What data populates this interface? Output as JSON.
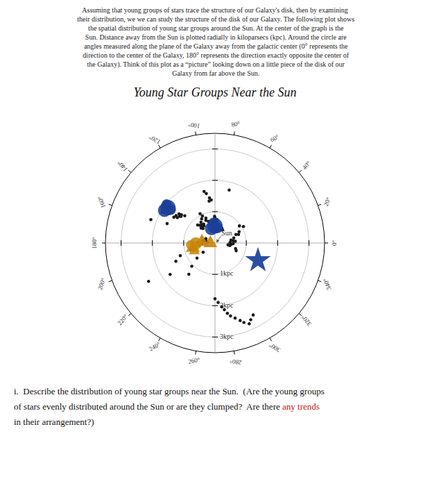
{
  "chart_data": {
    "type": "polar",
    "title": "Young Star Groups Near the Sun",
    "subtitle": [
      "    Assuming that young groups of stars trace the structure of our Galaxy's disk, then by examining",
      " their distribution, we we can study the structure of the disk of our Galaxy. The following plot shows",
      " the spatial distribution of young star groups around the Sun. At the center of the graph is the",
      " Sun. Distance away from the Sun is plotted radially in kiloparsecs (kpc). Around the circle are",
      " angles measured along the plane of the Galaxy away from the galactic center (0° represents the",
      " direction to the center of the Galaxy, 180° represents the direction exactly opposite the center of",
      " the Galaxy). Think of this plot as a “picture” looking down on a little piece of the disk of our",
      " Galaxy from far above the Sun."
    ],
    "xlim": [
      0,
      360
    ],
    "xticks": [
      {
        "value": 0,
        "label": "0°"
      },
      {
        "value": 20,
        "label": "20°"
      },
      {
        "value": 40,
        "label": "40°"
      },
      {
        "value": 60,
        "label": "60°"
      },
      {
        "value": 80,
        "label": "80°"
      },
      {
        "value": 100,
        "label": "100°"
      },
      {
        "value": 120,
        "label": "120°"
      },
      {
        "value": 140,
        "label": "140°"
      },
      {
        "value": 160,
        "label": "160°"
      },
      {
        "value": 180,
        "label": "180°"
      },
      {
        "value": 200,
        "label": "200°"
      },
      {
        "value": 220,
        "label": "220°"
      },
      {
        "value": 240,
        "label": "240°"
      },
      {
        "value": 260,
        "label": "260°"
      },
      {
        "value": 280,
        "label": "280°"
      },
      {
        "value": 300,
        "label": "300°"
      },
      {
        "value": 320,
        "label": "320°"
      },
      {
        "value": 340,
        "label": "340°"
      }
    ],
    "ylim": [
      0,
      3.5
    ],
    "yticks": [
      {
        "value": 1.0,
        "label": "1kpc"
      },
      {
        "value": 2.0,
        "label": "2kpc"
      },
      {
        "value": 3.0,
        "label": "3kpc"
      }
    ],
    "series": [
      {
        "color": "#1a1a1a",
        "marker": "circle",
        "x": [
          107,
          110,
          112,
          115,
          117,
          119,
          121,
          123,
          124,
          126,
          128,
          130,
          131,
          133,
          134,
          138,
          140,
          141,
          142,
          143,
          145,
          146,
          148,
          100,
          102,
          95,
          97,
          98,
          88,
          90,
          91,
          93,
          85,
          75,
          80,
          65,
          60,
          168,
          170,
          172,
          175,
          178,
          183,
          185,
          187,
          190,
          192,
          195,
          197,
          200,
          205,
          210,
          215,
          160,
          155,
          158,
          150,
          165,
          218,
          220,
          225,
          230,
          350,
          352,
          355,
          358,
          2,
          5,
          7,
          10,
          15,
          20,
          22,
          25,
          30,
          35,
          340,
          345,
          270,
          273,
          276,
          278,
          280,
          282,
          285,
          288,
          290,
          293,
          295,
          298
        ],
        "values": [
          0.72,
          0.85,
          0.78,
          0.95,
          1.05,
          0.88,
          0.7,
          0.65,
          0.8,
          0.72,
          0.68,
          0.6,
          0.75,
          0.65,
          0.8,
          1.3,
          1.4,
          1.48,
          1.38,
          1.42,
          1.52,
          1.45,
          1.55,
          1.6,
          1.68,
          1.38,
          1.45,
          1.35,
          0.72,
          0.8,
          0.85,
          0.68,
          0.75,
          1.75,
          0.48,
          0.52,
          0.48,
          0.38,
          0.3,
          0.25,
          0.42,
          0.55,
          0.42,
          0.48,
          0.52,
          0.75,
          0.65,
          0.8,
          0.72,
          1.18,
          1.38,
          2.45,
          1.75,
          2.18,
          0.32,
          1.65,
          1.95,
          0.38,
          0.48,
          0.75,
          1.05,
          1.3,
          0.48,
          0.42,
          0.52,
          0.58,
          0.48,
          0.65,
          0.58,
          0.52,
          0.62,
          0.8,
          0.72,
          0.85,
          1.05,
          0.95,
          0.72,
          0.68,
          1.78,
          1.9,
          2.05,
          2.15,
          2.28,
          2.38,
          2.48,
          2.6,
          2.7,
          2.8,
          2.7,
          2.6
        ]
      },
      {
        "color": "#1a3f99",
        "marker": "blob",
        "x": [
          143,
          90
        ],
        "values": [
          1.88,
          0.55
        ]
      },
      {
        "color": "#1a3f99",
        "marker": "star",
        "x": [
          338
        ],
        "values": [
          1.48
        ]
      },
      {
        "color": "#c8860a",
        "marker": "triangle",
        "x": [
          183,
          175
        ],
        "values": [
          0.15,
          0.42
        ]
      },
      {
        "color": "#c8860a",
        "marker": "cluster",
        "x": [
          192
        ],
        "values": [
          0.72
        ]
      }
    ],
    "annotations": [
      {
        "text": "Sun",
        "x": 50,
        "y": 0.32,
        "arrow_x": 20,
        "arrow_y": 0.05
      }
    ],
    "footer": [
      [
        {
          "text": "i.  Describe the distribution of young star groups near the Sun.  (Are the young groups"
        }
      ],
      [
        {
          "text": "of stars evenly distributed around the Sun or are they clumped?  Are there "
        },
        {
          "text": "any trends",
          "color": "#cc1111"
        }
      ],
      [
        {
          "text": "in their arrangement?)"
        }
      ]
    ]
  }
}
